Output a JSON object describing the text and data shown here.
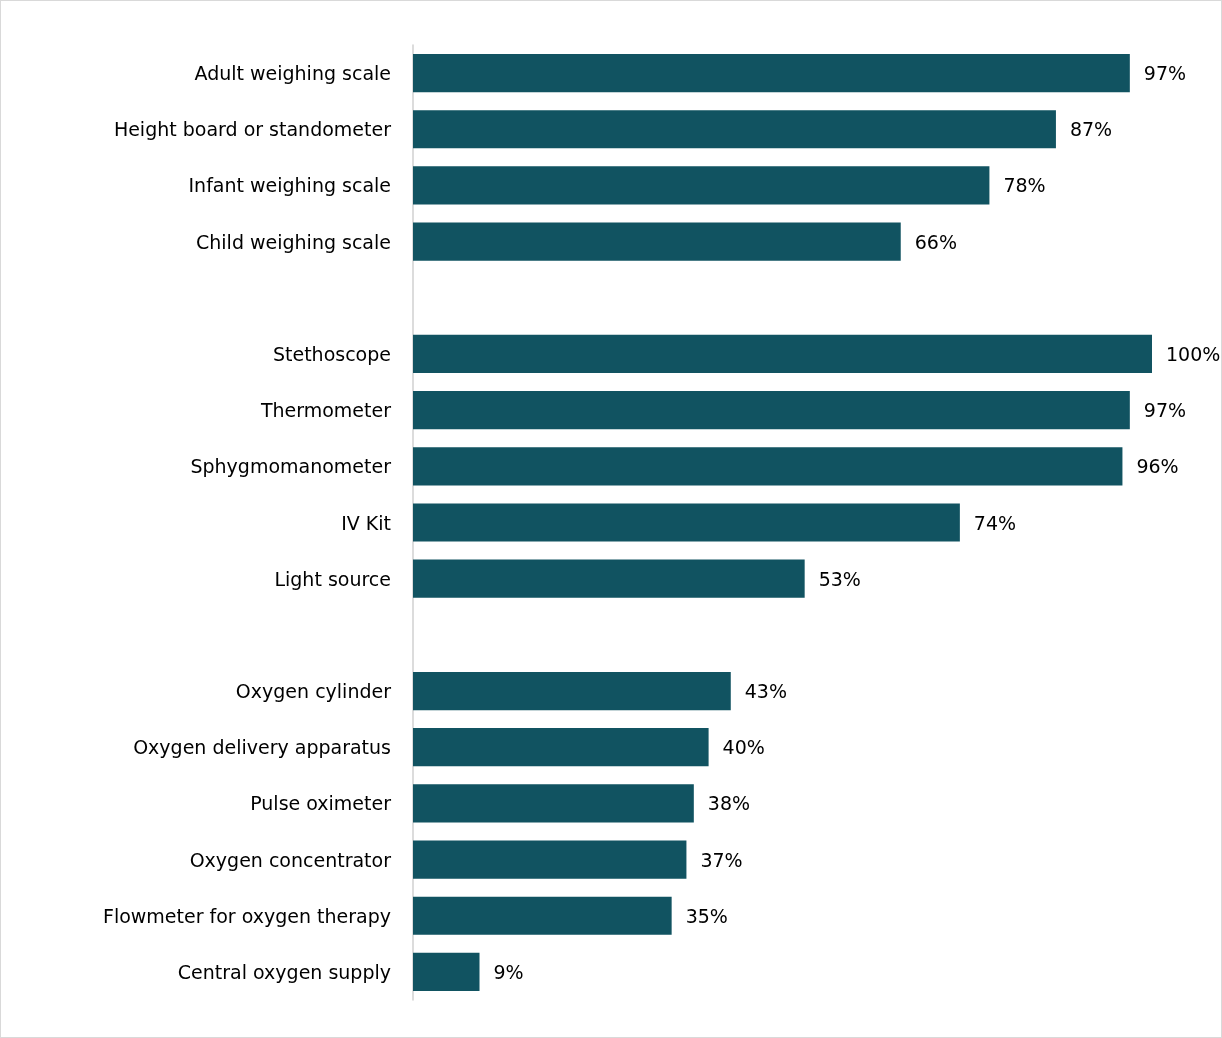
{
  "chart_data": {
    "type": "bar",
    "orientation": "horizontal",
    "categories": [
      "Adult weighing scale",
      "Height board or standometer",
      "Infant weighing scale",
      "Child weighing scale",
      null,
      "Stethoscope",
      "Thermometer",
      "Sphygmomanometer",
      "IV Kit",
      "Light source",
      null,
      "Oxygen cylinder",
      "Oxygen delivery apparatus",
      "Pulse oximeter",
      "Oxygen concentrator",
      "Flowmeter for oxygen therapy",
      "Central oxygen supply"
    ],
    "values": [
      97,
      87,
      78,
      66,
      null,
      100,
      97,
      96,
      74,
      53,
      null,
      43,
      40,
      38,
      37,
      35,
      9
    ],
    "value_labels": [
      "97%",
      "87%",
      "78%",
      "66%",
      null,
      "100%",
      "97%",
      "96%",
      "74%",
      "53%",
      null,
      "43%",
      "40%",
      "38%",
      "37%",
      "35%",
      "9%"
    ],
    "color": "#115361",
    "xlim": [
      0,
      100
    ],
    "tick_labels": "y",
    "grid": false
  }
}
